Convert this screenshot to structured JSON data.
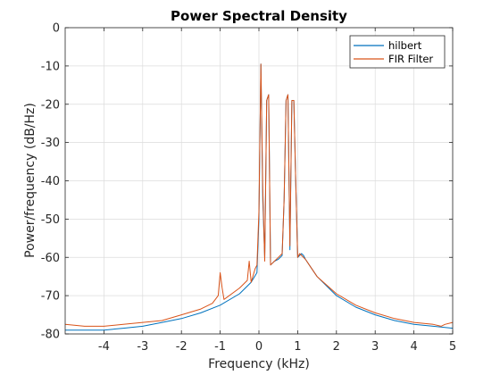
{
  "chart_data": {
    "type": "line",
    "title": "Power Spectral Density",
    "xlabel": "Frequency (kHz)",
    "ylabel": "Power/frequency (dB/Hz)",
    "xlim": [
      -5,
      5
    ],
    "ylim": [
      -80,
      0
    ],
    "xticks": [
      -4,
      -3,
      -2,
      -1,
      0,
      1,
      2,
      3,
      4,
      5
    ],
    "yticks": [
      0,
      -10,
      -20,
      -30,
      -40,
      -50,
      -60,
      -70,
      -80
    ],
    "xtick_labels": [
      "-4",
      "-3",
      "-2",
      "-1",
      "0",
      "1",
      "2",
      "3",
      "4",
      "5"
    ],
    "ytick_labels": [
      "0",
      "-10",
      "-20",
      "-30",
      "-40",
      "-50",
      "-60",
      "-70",
      "-80"
    ],
    "grid": true,
    "legend_position": "top-right",
    "series": [
      {
        "name": "hilbert",
        "color": "#0072BD",
        "x": [
          -5,
          -4.5,
          -4,
          -3.5,
          -3,
          -2.5,
          -2,
          -1.5,
          -1,
          -0.5,
          -0.2,
          -0.05,
          0,
          0.05,
          0.1,
          0.15,
          0.2,
          0.25,
          0.3,
          0.4,
          0.5,
          0.6,
          0.65,
          0.7,
          0.75,
          0.8,
          0.85,
          0.9,
          0.95,
          1.0,
          1.05,
          1.1,
          1.15,
          1.2,
          1.3,
          1.5,
          2,
          2.5,
          3,
          3.5,
          4,
          4.5,
          5
        ],
        "y": [
          -79,
          -79,
          -79,
          -78.5,
          -78,
          -77,
          -76,
          -74.5,
          -72.5,
          -69.5,
          -66.5,
          -64,
          -50,
          -9.5,
          -45,
          -60,
          -19,
          -17.5,
          -62,
          -61,
          -60.5,
          -59.5,
          -45,
          -19,
          -17.5,
          -58,
          -19,
          -19,
          -40,
          -60,
          -59.5,
          -59,
          -59.5,
          -60.5,
          -62,
          -65,
          -70,
          -73,
          -75,
          -76.5,
          -77.5,
          -78,
          -78.5
        ]
      },
      {
        "name": "FIR Filter",
        "color": "#D95319",
        "x": [
          -5,
          -4.5,
          -4,
          -3.5,
          -3,
          -2.5,
          -2,
          -1.5,
          -1.2,
          -1.05,
          -1.0,
          -0.95,
          -0.9,
          -0.5,
          -0.3,
          -0.25,
          -0.2,
          -0.1,
          -0.05,
          0,
          0.05,
          0.1,
          0.15,
          0.2,
          0.25,
          0.3,
          0.4,
          0.5,
          0.6,
          0.65,
          0.7,
          0.75,
          0.8,
          0.85,
          0.9,
          0.95,
          1.0,
          1.05,
          1.1,
          1.15,
          1.2,
          1.3,
          1.5,
          2,
          2.5,
          3,
          3.5,
          4,
          4.5,
          4.7,
          4.8,
          5
        ],
        "y": [
          -77.5,
          -78,
          -78,
          -77.5,
          -77,
          -76.5,
          -75,
          -73.5,
          -72,
          -70,
          -64,
          -68,
          -71,
          -68,
          -66,
          -61,
          -66.5,
          -63,
          -62,
          -48,
          -9.5,
          -42,
          -61,
          -19,
          -17.5,
          -62,
          -61,
          -60,
          -59,
          -45,
          -19,
          -17.5,
          -57,
          -19,
          -19,
          -40,
          -60,
          -59,
          -59.5,
          -60,
          -60.5,
          -62,
          -65,
          -69.5,
          -72.5,
          -74.5,
          -76,
          -77,
          -77.5,
          -78,
          -77.5,
          -77
        ]
      }
    ]
  }
}
